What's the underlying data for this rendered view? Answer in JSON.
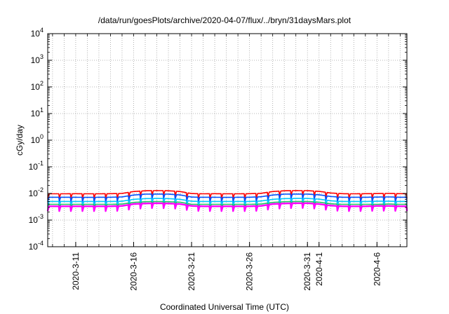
{
  "chart_data": {
    "type": "line",
    "title": "/data/run/goesPlots/archive/2020-04-07/flux/../bryn/31daysMars.plot",
    "xlabel": "Coordinated Universal Time (UTC)",
    "ylabel": "cGy/day",
    "yscale": "log",
    "ylim": [
      0.0001,
      10000
    ],
    "xlim": [
      "2020-03-08T14:00",
      "2020-04-08T14:00"
    ],
    "grid": true,
    "x_ticks": [
      {
        "date": "2020-03-11",
        "label": "2020-3-11"
      },
      {
        "date": "2020-03-16",
        "label": "2020-3-16"
      },
      {
        "date": "2020-03-21",
        "label": "2020-3-21"
      },
      {
        "date": "2020-03-26",
        "label": "2020-3-26"
      },
      {
        "date": "2020-03-31",
        "label": "2020-3-31"
      },
      {
        "date": "2020-04-01",
        "label": "2020-4-1"
      },
      {
        "date": "2020-04-06",
        "label": "2020-4-6"
      }
    ],
    "y_ticks": [
      {
        "value": 0.0001,
        "base": "10",
        "exp": "-4"
      },
      {
        "value": 0.001,
        "base": "10",
        "exp": "-3"
      },
      {
        "value": 0.01,
        "base": "10",
        "exp": "-2"
      },
      {
        "value": 0.1,
        "base": "10",
        "exp": "-1"
      },
      {
        "value": 1,
        "base": "10",
        "exp": "0"
      },
      {
        "value": 10,
        "base": "10",
        "exp": "1"
      },
      {
        "value": 100,
        "base": "10",
        "exp": "2"
      },
      {
        "value": 1000,
        "base": "10",
        "exp": "3"
      },
      {
        "value": 10000,
        "base": "10",
        "exp": "4"
      }
    ],
    "daily_values": [
      {
        "date": "2020-03-09",
        "red": 0.0097,
        "blue": 0.0072,
        "cyan": 0.005,
        "green": 0.0039,
        "magenta": 0.0033
      },
      {
        "date": "2020-03-10",
        "red": 0.0097,
        "blue": 0.0072,
        "cyan": 0.005,
        "green": 0.0039,
        "magenta": 0.0033
      },
      {
        "date": "2020-03-11",
        "red": 0.0098,
        "blue": 0.0072,
        "cyan": 0.005,
        "green": 0.0039,
        "magenta": 0.0033
      },
      {
        "date": "2020-03-12",
        "red": 0.0097,
        "blue": 0.0071,
        "cyan": 0.005,
        "green": 0.0039,
        "magenta": 0.0033
      },
      {
        "date": "2020-03-13",
        "red": 0.0097,
        "blue": 0.0072,
        "cyan": 0.005,
        "green": 0.0039,
        "magenta": 0.0033
      },
      {
        "date": "2020-03-14",
        "red": 0.0098,
        "blue": 0.0072,
        "cyan": 0.005,
        "green": 0.0039,
        "magenta": 0.0033
      },
      {
        "date": "2020-03-15",
        "red": 0.01,
        "blue": 0.0074,
        "cyan": 0.0051,
        "green": 0.004,
        "magenta": 0.0034
      },
      {
        "date": "2020-03-16",
        "red": 0.0118,
        "blue": 0.0087,
        "cyan": 0.006,
        "green": 0.0046,
        "magenta": 0.004
      },
      {
        "date": "2020-03-17",
        "red": 0.0126,
        "blue": 0.0094,
        "cyan": 0.0064,
        "green": 0.0049,
        "magenta": 0.0042
      },
      {
        "date": "2020-03-18",
        "red": 0.0128,
        "blue": 0.0095,
        "cyan": 0.0065,
        "green": 0.005,
        "magenta": 0.0043
      },
      {
        "date": "2020-03-19",
        "red": 0.0126,
        "blue": 0.0094,
        "cyan": 0.0064,
        "green": 0.0049,
        "magenta": 0.0042
      },
      {
        "date": "2020-03-20",
        "red": 0.0118,
        "blue": 0.0088,
        "cyan": 0.006,
        "green": 0.0047,
        "magenta": 0.004
      },
      {
        "date": "2020-03-21",
        "red": 0.0099,
        "blue": 0.0073,
        "cyan": 0.0051,
        "green": 0.0039,
        "magenta": 0.0034
      },
      {
        "date": "2020-03-22",
        "red": 0.0097,
        "blue": 0.0072,
        "cyan": 0.005,
        "green": 0.0039,
        "magenta": 0.0033
      },
      {
        "date": "2020-03-23",
        "red": 0.0098,
        "blue": 0.0072,
        "cyan": 0.005,
        "green": 0.0039,
        "magenta": 0.0033
      },
      {
        "date": "2020-03-24",
        "red": 0.0097,
        "blue": 0.0071,
        "cyan": 0.005,
        "green": 0.0039,
        "magenta": 0.0033
      },
      {
        "date": "2020-03-25",
        "red": 0.0097,
        "blue": 0.0072,
        "cyan": 0.005,
        "green": 0.0039,
        "magenta": 0.0033
      },
      {
        "date": "2020-03-26",
        "red": 0.0098,
        "blue": 0.0072,
        "cyan": 0.005,
        "green": 0.0039,
        "magenta": 0.0033
      },
      {
        "date": "2020-03-27",
        "red": 0.0101,
        "blue": 0.0075,
        "cyan": 0.0052,
        "green": 0.004,
        "magenta": 0.0034
      },
      {
        "date": "2020-03-28",
        "red": 0.0118,
        "blue": 0.0087,
        "cyan": 0.006,
        "green": 0.0046,
        "magenta": 0.004
      },
      {
        "date": "2020-03-29",
        "red": 0.0126,
        "blue": 0.0094,
        "cyan": 0.0064,
        "green": 0.0049,
        "magenta": 0.0042
      },
      {
        "date": "2020-03-30",
        "red": 0.0128,
        "blue": 0.0095,
        "cyan": 0.0065,
        "green": 0.005,
        "magenta": 0.0043
      },
      {
        "date": "2020-03-31",
        "red": 0.0127,
        "blue": 0.0094,
        "cyan": 0.0065,
        "green": 0.005,
        "magenta": 0.0043
      },
      {
        "date": "2020-04-01",
        "red": 0.012,
        "blue": 0.0089,
        "cyan": 0.0061,
        "green": 0.0047,
        "magenta": 0.004
      },
      {
        "date": "2020-04-02",
        "red": 0.0104,
        "blue": 0.0077,
        "cyan": 0.0053,
        "green": 0.0041,
        "magenta": 0.0035
      },
      {
        "date": "2020-04-03",
        "red": 0.0098,
        "blue": 0.0072,
        "cyan": 0.005,
        "green": 0.0039,
        "magenta": 0.0033
      },
      {
        "date": "2020-04-04",
        "red": 0.0097,
        "blue": 0.0072,
        "cyan": 0.005,
        "green": 0.0039,
        "magenta": 0.0033
      },
      {
        "date": "2020-04-05",
        "red": 0.0098,
        "blue": 0.0072,
        "cyan": 0.005,
        "green": 0.0039,
        "magenta": 0.0033
      },
      {
        "date": "2020-04-06",
        "red": 0.0099,
        "blue": 0.0073,
        "cyan": 0.0051,
        "green": 0.0039,
        "magenta": 0.0034
      },
      {
        "date": "2020-04-07",
        "red": 0.01,
        "blue": 0.0074,
        "cyan": 0.0051,
        "green": 0.004,
        "magenta": 0.0034
      },
      {
        "date": "2020-04-08",
        "red": 0.0098,
        "blue": 0.0072,
        "cyan": 0.005,
        "green": 0.0039,
        "magenta": 0.0033
      }
    ],
    "daily_minimum_fraction": 0.66,
    "series_colors": {
      "red": "#ff0000",
      "blue": "#0050ff",
      "cyan": "#00c8ff",
      "green": "#20c060",
      "magenta": "#ff00ff"
    },
    "grid_color": "#a0a0a0"
  }
}
